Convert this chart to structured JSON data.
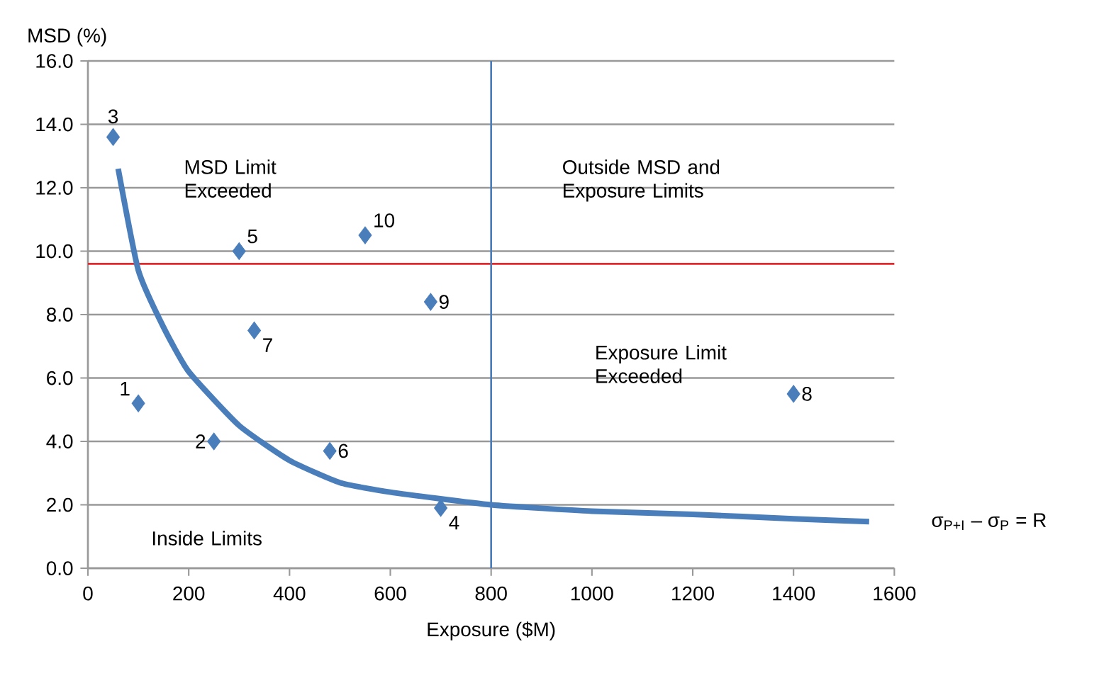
{
  "chart_data": {
    "type": "scatter",
    "xlabel": "Exposure ($M)",
    "ylabel": "MSD (%)",
    "xlim": [
      0,
      1600
    ],
    "ylim": [
      0,
      16
    ],
    "xticks": [
      0,
      200,
      400,
      600,
      800,
      1000,
      1200,
      1400,
      1600
    ],
    "yticks": [
      {
        "value": 0,
        "label": "0.0"
      },
      {
        "value": 2,
        "label": "2.0"
      },
      {
        "value": 4,
        "label": "4.0"
      },
      {
        "value": 6,
        "label": "6.0"
      },
      {
        "value": 8,
        "label": "8.0"
      },
      {
        "value": 10,
        "label": "10.0"
      },
      {
        "value": 12,
        "label": "12.0"
      },
      {
        "value": 14,
        "label": "14.0"
      },
      {
        "value": 16,
        "label": "16.0"
      }
    ],
    "grid": "y",
    "series": [
      {
        "color": "#4a7ebb",
        "marker": "diamond",
        "x": [
          100,
          250,
          50,
          700,
          300,
          480,
          330,
          1400,
          680,
          550
        ],
        "values": [
          5.2,
          4.0,
          13.6,
          1.9,
          10.0,
          3.7,
          7.5,
          5.5,
          8.4,
          10.5
        ]
      },
      {
        "type": "line",
        "name": "σ$_{P+I}$ – σ$_{P}$ = R",
        "color": "#4a7ebb",
        "marker": "none",
        "x": [
          60,
          100,
          150,
          200,
          300,
          400,
          500,
          600,
          800,
          1000,
          1200,
          1400,
          1550
        ],
        "values": [
          12.6,
          9.4,
          7.6,
          6.2,
          4.5,
          3.4,
          2.7,
          2.4,
          2.0,
          1.8,
          1.7,
          1.56,
          1.47
        ]
      }
    ],
    "ref_lines": [
      {
        "axis": "y",
        "value": 9.6,
        "color": "#e8262a"
      },
      {
        "axis": "x",
        "value": 800,
        "color": "#4a7ebb"
      }
    ],
    "annotations": [
      {
        "text": "1",
        "x": 100,
        "y": 5.2
      },
      {
        "text": "2",
        "x": 250,
        "y": 4.0
      },
      {
        "text": "3",
        "x": 50,
        "y": 13.6
      },
      {
        "text": "4",
        "x": 700,
        "y": 1.9
      },
      {
        "text": "5",
        "x": 300,
        "y": 10.0
      },
      {
        "text": "6",
        "x": 480,
        "y": 3.7
      },
      {
        "text": "7",
        "x": 330,
        "y": 7.5
      },
      {
        "text": "8",
        "x": 1400,
        "y": 5.5
      },
      {
        "text": "9",
        "x": 680,
        "y": 8.4
      },
      {
        "text": "10",
        "x": 550,
        "y": 10.5
      },
      "MSD Limit Exceeded",
      "Outside MSD and Exposure Limits",
      "Exposure Limit Exceeded",
      "Inside Limits"
    ]
  }
}
